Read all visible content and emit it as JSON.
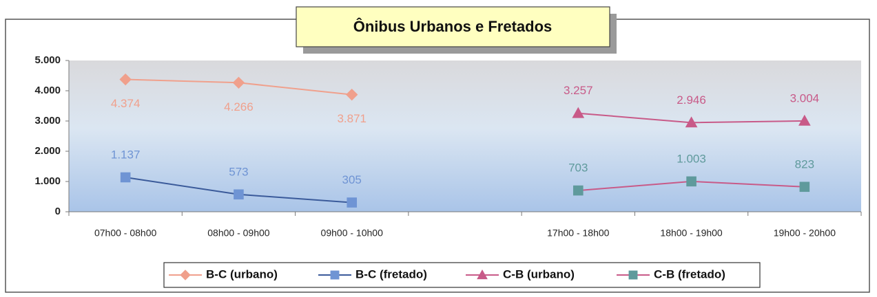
{
  "chart_data": {
    "type": "line",
    "title": "Ônibus Urbanos e Fretados",
    "categories": [
      "07h00 - 08h00",
      "08h00 - 09h00",
      "09h00 - 10h00",
      null,
      "17h00 - 18h00",
      "18h00 - 19h00",
      "19h00 - 20h00"
    ],
    "series": [
      {
        "name": "B-C (urbano)",
        "color": "#f0a08c",
        "marker_color": "#f0a08c",
        "marker": "diamond",
        "values": [
          4374,
          4266,
          3871,
          null,
          null,
          null,
          null
        ],
        "value_labels": [
          "4.374",
          "4.266",
          "3.871",
          null,
          null,
          null,
          null
        ]
      },
      {
        "name": "B-C (fretado)",
        "color": "#3a5a9a",
        "marker_color": "#6f94d4",
        "marker": "square",
        "values": [
          1137,
          573,
          305,
          null,
          null,
          null,
          null
        ],
        "value_labels": [
          "1.137",
          "573",
          "305",
          null,
          null,
          null,
          null
        ]
      },
      {
        "name": "C-B (urbano)",
        "color": "#c85a88",
        "marker_color": "#c85a88",
        "marker": "triangle",
        "values": [
          null,
          null,
          null,
          null,
          3257,
          2946,
          3004
        ],
        "value_labels": [
          null,
          null,
          null,
          null,
          "3.257",
          "2.946",
          "3.004"
        ]
      },
      {
        "name": "C-B (fretado)",
        "color": "#c85a88",
        "marker_color": "#5f9a9c",
        "marker": "square",
        "values": [
          null,
          null,
          null,
          null,
          703,
          1003,
          823
        ],
        "value_labels": [
          null,
          null,
          null,
          null,
          "703",
          "1.003",
          "823"
        ]
      }
    ],
    "ylim": [
      0,
      5000
    ],
    "yticks": [
      0,
      {
        "value": 1000,
        "label": "1.000"
      },
      {
        "value": 2000,
        "label": "2.000"
      },
      {
        "value": 3000,
        "label": "3.000"
      },
      {
        "value": 4000,
        "label": "4.000"
      },
      {
        "value": 5000,
        "label": "5.000"
      }
    ],
    "legend": "bottom"
  }
}
